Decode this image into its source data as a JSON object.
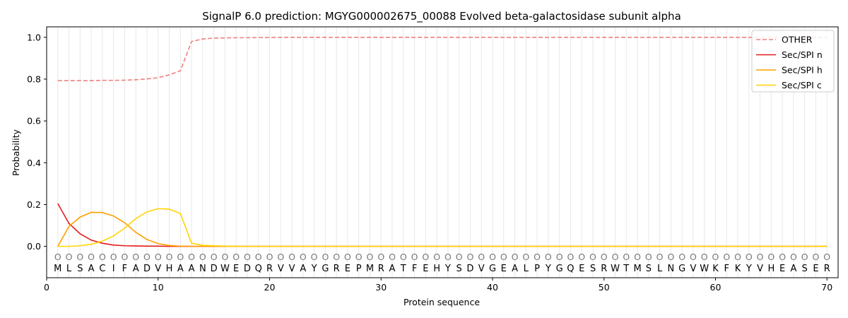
{
  "chart_data": {
    "type": "line",
    "title": "SignalP 6.0 prediction: MGYG000002675_00088 Evolved beta-galactosidase subunit alpha",
    "xlabel": "Protein sequence",
    "ylabel": "Probability",
    "xlim": [
      0,
      71
    ],
    "ylim": [
      -0.15,
      1.05
    ],
    "xticks": [
      0,
      10,
      20,
      30,
      40,
      50,
      60,
      70
    ],
    "yticks": [
      0.0,
      0.2,
      0.4,
      0.6,
      0.8,
      1.0
    ],
    "grid": "vertical lines at each residue",
    "legend_position": "top-right",
    "sequence": [
      "M",
      "L",
      "S",
      "A",
      "C",
      "I",
      "F",
      "A",
      "D",
      "V",
      "H",
      "A",
      "A",
      "N",
      "D",
      "W",
      "E",
      "D",
      "Q",
      "R",
      "V",
      "V",
      "A",
      "Y",
      "G",
      "R",
      "E",
      "P",
      "M",
      "R",
      "A",
      "T",
      "F",
      "E",
      "H",
      "Y",
      "S",
      "D",
      "V",
      "G",
      "E",
      "A",
      "L",
      "P",
      "Y",
      "G",
      "Q",
      "E",
      "S",
      "R",
      "W",
      "T",
      "M",
      "S",
      "L",
      "N",
      "G",
      "V",
      "W",
      "K",
      "F",
      "K",
      "Y",
      "V",
      "H",
      "E",
      "A",
      "S",
      "E",
      "R"
    ],
    "state_symbol": "O",
    "series": [
      {
        "name": "OTHER",
        "color": "#f08080",
        "dash": "dashed",
        "values": [
          0.793,
          0.793,
          0.793,
          0.793,
          0.794,
          0.794,
          0.795,
          0.797,
          0.801,
          0.807,
          0.82,
          0.84,
          0.98,
          0.992,
          0.996,
          0.997,
          0.998,
          0.998,
          0.999,
          0.999,
          1.0,
          1.0,
          1.0,
          1.0,
          1.0,
          1.0,
          1.0,
          1.0,
          1.0,
          1.0,
          1.0,
          1.0,
          1.0,
          1.0,
          1.0,
          1.0,
          1.0,
          1.0,
          1.0,
          1.0,
          1.0,
          1.0,
          1.0,
          1.0,
          1.0,
          1.0,
          1.0,
          1.0,
          1.0,
          1.0,
          1.0,
          1.0,
          1.0,
          1.0,
          1.0,
          1.0,
          1.0,
          1.0,
          1.0,
          1.0,
          1.0,
          1.0,
          1.0,
          1.0,
          1.0,
          1.0,
          1.0,
          1.0,
          1.0,
          1.0
        ]
      },
      {
        "name": "Sec/SPI n",
        "color": "#e41a1c",
        "dash": "solid",
        "values": [
          0.205,
          0.11,
          0.06,
          0.03,
          0.015,
          0.006,
          0.003,
          0.002,
          0.001,
          0.001,
          0.0,
          0.0,
          0.0,
          0.0,
          0.0,
          0.0,
          0.0,
          0.0,
          0.0,
          0.0,
          0.0,
          0.0,
          0.0,
          0.0,
          0.0,
          0.0,
          0.0,
          0.0,
          0.0,
          0.0,
          0.0,
          0.0,
          0.0,
          0.0,
          0.0,
          0.0,
          0.0,
          0.0,
          0.0,
          0.0,
          0.0,
          0.0,
          0.0,
          0.0,
          0.0,
          0.0,
          0.0,
          0.0,
          0.0,
          0.0,
          0.0,
          0.0,
          0.0,
          0.0,
          0.0,
          0.0,
          0.0,
          0.0,
          0.0,
          0.0,
          0.0,
          0.0,
          0.0,
          0.0,
          0.0,
          0.0,
          0.0,
          0.0,
          0.0,
          0.0
        ]
      },
      {
        "name": "Sec/SPI h",
        "color": "#ff9f00",
        "dash": "solid",
        "values": [
          0.0,
          0.095,
          0.14,
          0.163,
          0.162,
          0.145,
          0.113,
          0.067,
          0.033,
          0.013,
          0.004,
          0.001,
          0.0,
          0.0,
          0.0,
          0.0,
          0.0,
          0.0,
          0.0,
          0.0,
          0.0,
          0.0,
          0.0,
          0.0,
          0.0,
          0.0,
          0.0,
          0.0,
          0.0,
          0.0,
          0.0,
          0.0,
          0.0,
          0.0,
          0.0,
          0.0,
          0.0,
          0.0,
          0.0,
          0.0,
          0.0,
          0.0,
          0.0,
          0.0,
          0.0,
          0.0,
          0.0,
          0.0,
          0.0,
          0.0,
          0.0,
          0.0,
          0.0,
          0.0,
          0.0,
          0.0,
          0.0,
          0.0,
          0.0,
          0.0,
          0.0,
          0.0,
          0.0,
          0.0,
          0.0,
          0.0,
          0.0,
          0.0,
          0.0,
          0.0
        ]
      },
      {
        "name": "Sec/SPI c",
        "color": "#ffd400",
        "dash": "solid",
        "values": [
          0.0,
          0.0,
          0.003,
          0.01,
          0.025,
          0.05,
          0.087,
          0.133,
          0.165,
          0.18,
          0.178,
          0.157,
          0.015,
          0.005,
          0.003,
          0.001,
          0.0,
          0.0,
          0.0,
          0.0,
          0.0,
          0.0,
          0.0,
          0.0,
          0.0,
          0.0,
          0.0,
          0.0,
          0.0,
          0.0,
          0.0,
          0.0,
          0.0,
          0.0,
          0.0,
          0.0,
          0.0,
          0.0,
          0.0,
          0.0,
          0.0,
          0.0,
          0.0,
          0.0,
          0.0,
          0.0,
          0.0,
          0.0,
          0.0,
          0.0,
          0.0,
          0.0,
          0.0,
          0.0,
          0.0,
          0.0,
          0.0,
          0.0,
          0.0,
          0.0,
          0.0,
          0.0,
          0.0,
          0.0,
          0.0,
          0.0,
          0.0,
          0.0,
          0.0,
          0.0
        ]
      }
    ]
  }
}
